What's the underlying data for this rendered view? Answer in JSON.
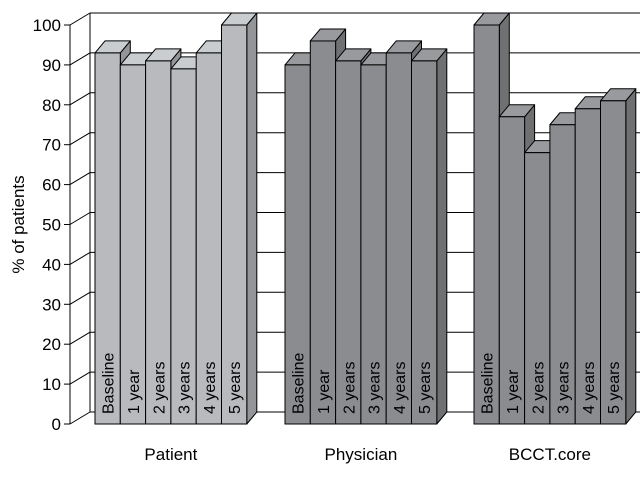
{
  "chart_data": {
    "type": "bar",
    "title": "",
    "xlabel": "",
    "ylabel": "% of patients",
    "ylim": [
      0,
      100
    ],
    "yticks": [
      0,
      10,
      20,
      30,
      40,
      50,
      60,
      70,
      80,
      90,
      100
    ],
    "grid": true,
    "categories": [
      "Patient",
      "Physician",
      "BCCT.core"
    ],
    "bar_labels": [
      "Baseline",
      "1 year",
      "2 years",
      "3 years",
      "4 years",
      "5 years"
    ],
    "series": [
      {
        "values": [
          93,
          90,
          100
        ]
      },
      {
        "values": [
          90,
          96,
          77
        ]
      },
      {
        "values": [
          91,
          91,
          68
        ]
      },
      {
        "values": [
          89,
          90,
          75
        ]
      },
      {
        "values": [
          93,
          93,
          79
        ]
      },
      {
        "values": [
          100,
          91,
          81
        ]
      }
    ],
    "colors": {
      "Patient": "#b8babd",
      "Physician": "#8a8c8f",
      "BCCT.core": "#8a8c8f"
    }
  }
}
